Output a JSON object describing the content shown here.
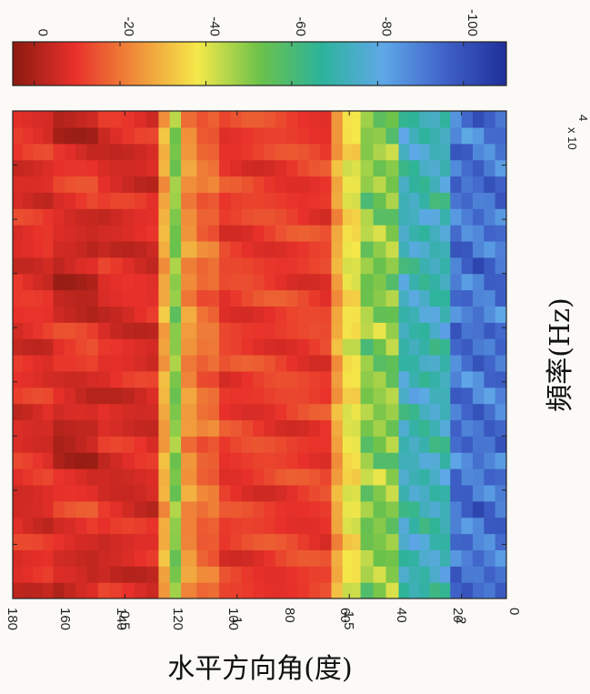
{
  "chart_data": {
    "type": "heatmap",
    "xlabel": "頻率(Hz)",
    "ylabel": "水平方向角(度)",
    "x_ticks": [
      "0.5",
      "1",
      "1.5",
      "2"
    ],
    "x_tick_values": [
      5000,
      10000,
      15000,
      20000
    ],
    "x_multiplier": "x 10",
    "x_multiplier_exponent": "4",
    "xlim": [
      0,
      22000
    ],
    "y_ticks": [
      "0",
      "20",
      "40",
      "60",
      "80",
      "100",
      "120",
      "140",
      "160",
      "180"
    ],
    "y_tick_values": [
      0,
      20,
      40,
      60,
      80,
      100,
      120,
      140,
      160,
      180
    ],
    "ylim": [
      0,
      180
    ],
    "colorbar": {
      "ticks": [
        "0",
        "-20",
        "-40",
        "-60",
        "-80",
        "-100"
      ],
      "tick_values": [
        0,
        -20,
        -40,
        -60,
        -80,
        -100
      ],
      "range": [
        5,
        -110
      ],
      "colormap": [
        "#8b1a10",
        "#e8302a",
        "#f08f3a",
        "#f5e84a",
        "#6cc24a",
        "#2db39a",
        "#5fa8e8",
        "#3f62c8",
        "#1f2f9a"
      ]
    },
    "bands": [
      {
        "f_start": 0,
        "f_end": 1800,
        "level": -8
      },
      {
        "f_start": 1800,
        "f_end": 3800,
        "level": -2
      },
      {
        "f_start": 3800,
        "f_end": 6500,
        "level": -7
      },
      {
        "f_start": 6500,
        "f_end": 7000,
        "level": -28
      },
      {
        "f_start": 7000,
        "f_end": 7500,
        "level": -50
      },
      {
        "f_start": 7500,
        "f_end": 8200,
        "level": -24
      },
      {
        "f_start": 8200,
        "f_end": 9200,
        "level": -18
      },
      {
        "f_start": 9200,
        "f_end": 14200,
        "level": -11
      },
      {
        "f_start": 14200,
        "f_end": 14700,
        "level": -27
      },
      {
        "f_start": 14700,
        "f_end": 15500,
        "level": -38
      },
      {
        "f_start": 15500,
        "f_end": 17200,
        "level": -50
      },
      {
        "f_start": 17200,
        "f_end": 19500,
        "level": -72
      },
      {
        "f_start": 19500,
        "f_end": 22000,
        "level": -92
      }
    ]
  }
}
